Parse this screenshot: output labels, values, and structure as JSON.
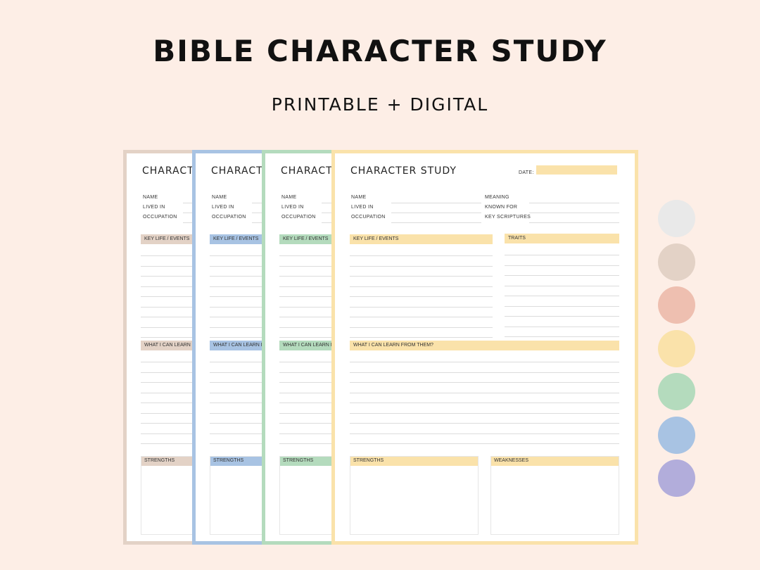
{
  "header": {
    "title": "BIBLE CHARACTER STUDY",
    "subtitle": "PRINTABLE + DIGITAL"
  },
  "page": {
    "title": "CHARACTER STUDY",
    "date_label": "DATE:",
    "fields_left": [
      "NAME",
      "LIVED IN",
      "OCCUPATION"
    ],
    "fields_right": [
      "MEANING",
      "KNOWN FOR",
      "KEY SCRIPTURES"
    ],
    "sections": {
      "key_life": "KEY LIFE / EVENTS",
      "traits": "TRAITS",
      "learn": "WHAT I CAN LEARN FROM THEM?",
      "strengths": "STRENGTHS",
      "weaknesses": "WEAKNESSES"
    }
  },
  "page_variants": [
    {
      "name": "beige",
      "color": "#e3d2c6"
    },
    {
      "name": "blue",
      "color": "#a8c3e3"
    },
    {
      "name": "green",
      "color": "#b4dbbd"
    },
    {
      "name": "yellow",
      "color": "#fae2aa"
    }
  ],
  "swatches": [
    {
      "name": "light-gray",
      "color": "#e9e9e9"
    },
    {
      "name": "beige",
      "color": "#e3d2c6"
    },
    {
      "name": "peach",
      "color": "#eebfb0"
    },
    {
      "name": "yellow",
      "color": "#fae2aa"
    },
    {
      "name": "green",
      "color": "#b4dbbd"
    },
    {
      "name": "blue",
      "color": "#a8c3e3"
    },
    {
      "name": "lavender",
      "color": "#b2addb"
    }
  ]
}
